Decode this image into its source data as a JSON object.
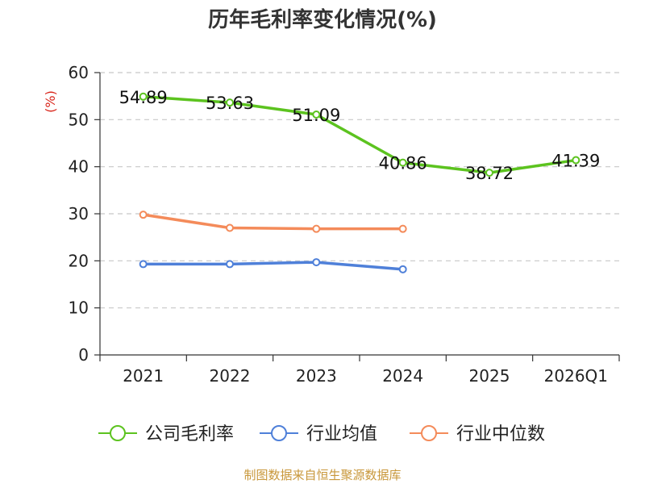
{
  "title": "历年毛利率变化情况(%)",
  "source": "制图数据来自恒生聚源数据库",
  "chart_data": {
    "type": "line",
    "title": "历年毛利率变化情况(%)",
    "ylabel": "(%)",
    "xlabel": "",
    "ylim": [
      0,
      60
    ],
    "yticks": [
      0,
      10,
      20,
      30,
      40,
      50,
      60
    ],
    "grid": true,
    "legend_position": "bottom",
    "categories": [
      "2021",
      "2022",
      "2023",
      "2024",
      "2025",
      "2026Q1"
    ],
    "series": [
      {
        "name": "公司毛利率",
        "color": "#5cc31f",
        "values": [
          54.89,
          53.63,
          51.09,
          40.86,
          38.72,
          41.39
        ],
        "labels": [
          "54.89",
          "53.63",
          "51.09",
          "40.86",
          "38.72",
          "41.39"
        ]
      },
      {
        "name": "行业均值",
        "color": "#4f80d9",
        "values": [
          19.3,
          19.3,
          19.7,
          18.2,
          null,
          null
        ]
      },
      {
        "name": "行业中位数",
        "color": "#f48b5a",
        "values": [
          29.8,
          27.0,
          26.8,
          26.8,
          null,
          null
        ]
      }
    ]
  }
}
